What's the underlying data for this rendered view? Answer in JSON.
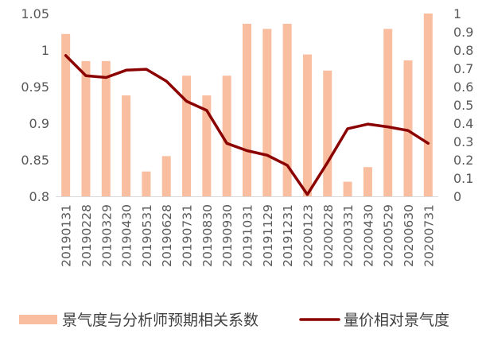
{
  "chart_data": {
    "type": "bar+line",
    "title": "",
    "categories": [
      "20190131",
      "20190228",
      "20190329",
      "20190430",
      "20190531",
      "20190628",
      "20190731",
      "20190830",
      "20190930",
      "20191031",
      "20191129",
      "20191231",
      "20200123",
      "20200228",
      "20200331",
      "20200430",
      "20200529",
      "20200630",
      "20200731"
    ],
    "series": [
      {
        "name": "景气度与分析师预期相关系数",
        "kind": "bar",
        "axis": "left",
        "color": "#F8BE9F",
        "values": [
          1.022,
          0.985,
          0.985,
          0.938,
          0.834,
          0.855,
          0.965,
          0.938,
          0.965,
          1.036,
          1.029,
          1.036,
          0.994,
          0.972,
          0.82,
          0.84,
          1.029,
          0.986,
          1.05
        ]
      },
      {
        "name": "量价相对景气度",
        "kind": "line",
        "axis": "right",
        "color": "#8B0000",
        "values": [
          0.77,
          0.66,
          0.65,
          0.69,
          0.695,
          0.63,
          0.52,
          0.47,
          0.29,
          0.25,
          0.225,
          0.17,
          0.01,
          0.185,
          0.37,
          0.395,
          0.38,
          0.36,
          0.29
        ]
      }
    ],
    "y_left": {
      "min": 0.8,
      "max": 1.05,
      "ticks": [
        "0.8",
        "0.85",
        "0.9",
        "0.95",
        "1",
        "1.05"
      ]
    },
    "y_right": {
      "min": 0,
      "max": 1,
      "ticks": [
        "0",
        "0.1",
        "0.2",
        "0.3",
        "0.4",
        "0.5",
        "0.6",
        "0.7",
        "0.8",
        "0.9",
        "1"
      ]
    },
    "grid": false,
    "legend_position": "bottom"
  }
}
